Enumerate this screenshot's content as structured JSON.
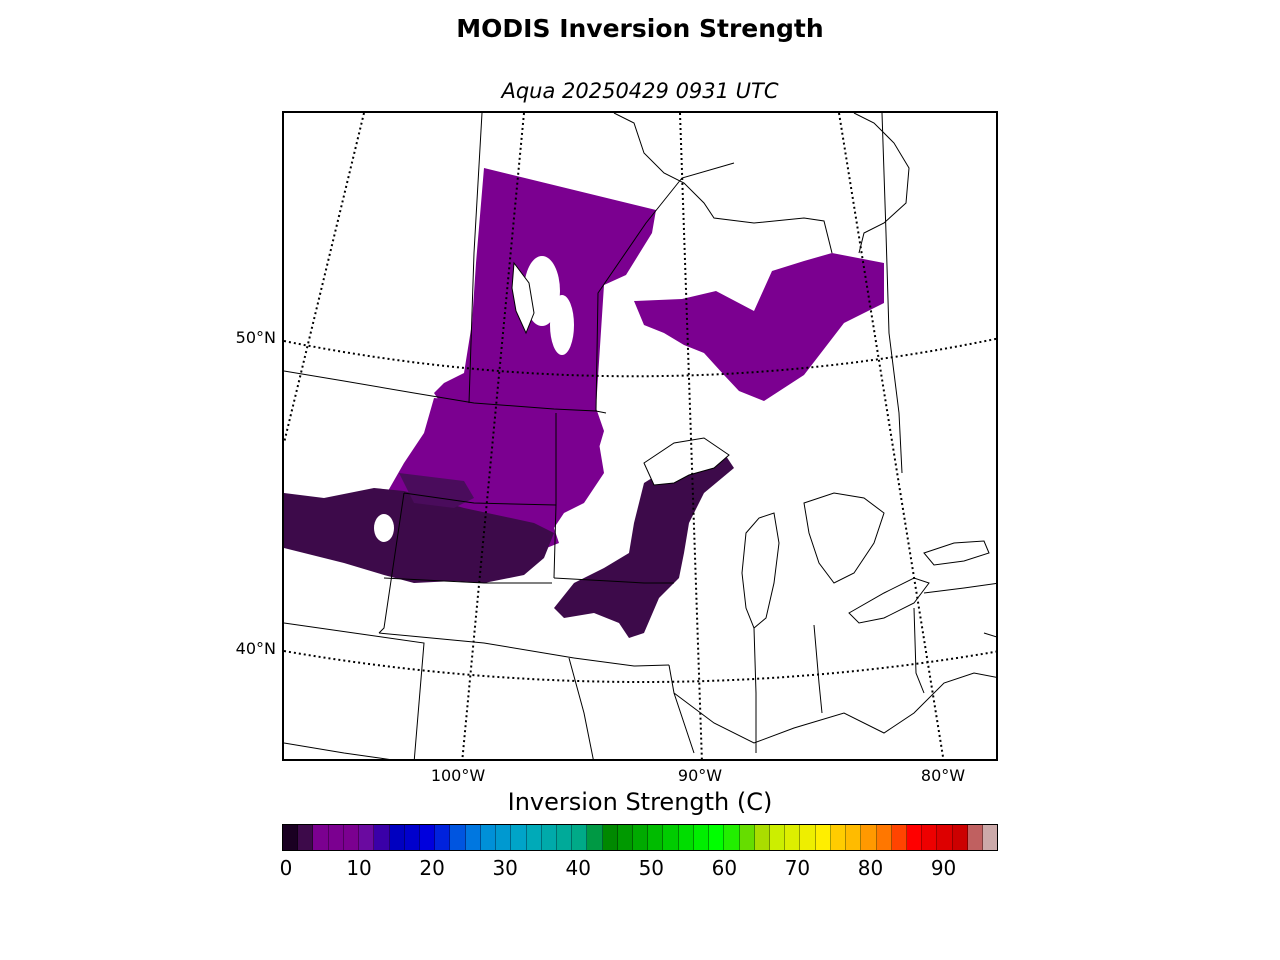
{
  "title": "MODIS Inversion Strength",
  "subtitle": "Aqua 20250429 0931 UTC",
  "colorbar_title": "Inversion Strength (C)",
  "lat_labels": [
    "50°N",
    "40°N"
  ],
  "lon_labels": [
    "100°W",
    "90°W",
    "80°W"
  ],
  "colorbar": {
    "min": 0,
    "max": 98,
    "ticks": [
      "0",
      "10",
      "20",
      "30",
      "40",
      "50",
      "60",
      "70",
      "80",
      "90"
    ],
    "colors": [
      "#1a0022",
      "#3d0a4a",
      "#7b0090",
      "#7b0090",
      "#7b0090",
      "#6a0aa0",
      "#3a00a8",
      "#0000c0",
      "#0000cc",
      "#0000dd",
      "#0022dd",
      "#0055e0",
      "#0077e0",
      "#0090d8",
      "#0099d0",
      "#00a4c8",
      "#00aab8",
      "#00aaaa",
      "#00aa99",
      "#00aa88",
      "#009944",
      "#008800",
      "#009900",
      "#00aa00",
      "#00bb00",
      "#00cc00",
      "#00dd00",
      "#00ee00",
      "#00ff00",
      "#22ee00",
      "#66dd00",
      "#aadd00",
      "#ccee00",
      "#ddee00",
      "#eeee00",
      "#ffee00",
      "#ffcc00",
      "#ffbb00",
      "#ff9900",
      "#ff7700",
      "#ff4400",
      "#ff0000",
      "#ee0000",
      "#dd0000",
      "#cc0000",
      "#c06060",
      "#ccaaaa"
    ]
  },
  "legend_colors": {
    "strong": "#3a0a4a",
    "medium": "#5a1070",
    "weak": "#7a0a9a"
  }
}
